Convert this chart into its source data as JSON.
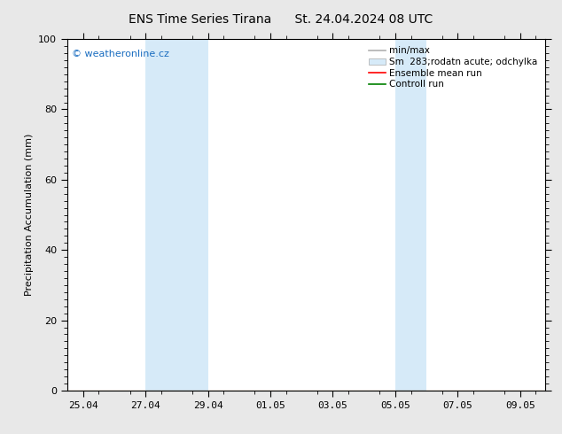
{
  "title_left": "ENS Time Series Tirana",
  "title_right": "St. 24.04.2024 08 UTC",
  "ylabel": "Precipitation Accumulation (mm)",
  "ylim": [
    0,
    100
  ],
  "yticks": [
    0,
    20,
    40,
    60,
    80,
    100
  ],
  "outer_bg_color": "#e8e8e8",
  "plot_bg_color": "#ffffff",
  "watermark": "© weatheronline.cz",
  "watermark_color": "#1a6dc0",
  "legend_line1": "min/max",
  "legend_line2": "Sm  283;rodatn acute; odchylka",
  "legend_line3": "Ensemble mean run",
  "legend_line4": "Controll run",
  "legend_color1": "#b0b0b0",
  "legend_color2": "#d6eaf8",
  "legend_color3": "#ff0000",
  "legend_color4": "#008000",
  "band1_x0": 2,
  "band1_x1": 4,
  "band2_x0": 10,
  "band2_x1": 11,
  "band_color": "#d6eaf8",
  "x_tick_labels": [
    "25.04",
    "27.04",
    "29.04",
    "01.05",
    "03.05",
    "05.05",
    "07.05",
    "09.05"
  ],
  "x_tick_pos": [
    0,
    2,
    4,
    6,
    8,
    10,
    12,
    14
  ],
  "xmin": -0.5,
  "xmax": 14.8,
  "title_fontsize": 10,
  "axis_label_fontsize": 8,
  "tick_fontsize": 8,
  "legend_fontsize": 7.5
}
